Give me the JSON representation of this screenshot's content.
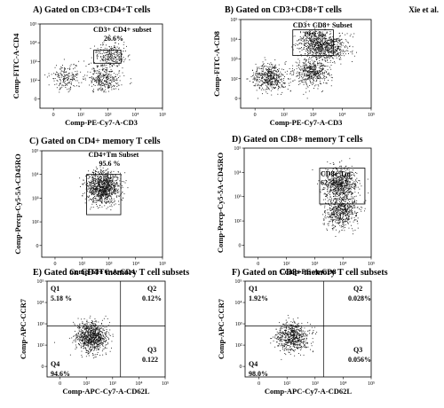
{
  "author": "Xie et al.",
  "chart_data": [
    {
      "type": "scatter",
      "panel": "A",
      "title": "A) Gated on CD3+CD4+T cells",
      "xlabel": "Comp-PE-Cy7-A-CD3",
      "ylabel": "Comp-FITC-A-CD4",
      "axis_scale": "log",
      "xlim": [
        -10,
        100000
      ],
      "ylim": [
        -10,
        100000
      ],
      "x_ticks": [
        "0",
        "10²",
        "10³",
        "10⁴",
        "10⁵"
      ],
      "y_ticks": [
        "0",
        "10²",
        "10³",
        "10⁴",
        "10⁵"
      ],
      "gate": {
        "type": "rectangle",
        "label": "CD3+ CD4+ subset",
        "percent": "26.6%",
        "x_range": [
          300,
          3000
        ],
        "y_range": [
          800,
          4000
        ]
      },
      "populations": [
        {
          "name": "",
          "center": [
            30,
            150
          ],
          "count": 200
        },
        {
          "name": "",
          "center": [
            1200,
            2200
          ],
          "count": 260
        },
        {
          "name": "",
          "center": [
            700,
            120
          ],
          "count": 320
        }
      ]
    },
    {
      "type": "scatter",
      "panel": "B",
      "title": "B) Gated on CD3+CD8+T cells",
      "xlabel": "Comp-PE-Cy7-A-CD3",
      "ylabel": "Comp-FITC-A-CD8",
      "axis_scale": "log",
      "xlim": [
        -10,
        100000
      ],
      "ylim": [
        -10,
        100000
      ],
      "x_ticks": [
        "0",
        "10²",
        "10³",
        "10⁴",
        "10⁵"
      ],
      "y_ticks": [
        "0",
        "10²",
        "10³",
        "10⁴",
        "10⁵"
      ],
      "gate": {
        "type": "rectangle",
        "label": "CD3+ CD8+ Subset",
        "percent": "19.9 %",
        "x_range": [
          200,
          5000
        ],
        "y_range": [
          1500,
          30000
        ]
      },
      "populations": [
        {
          "name": "",
          "center": [
            30,
            120
          ],
          "count": 520
        },
        {
          "name": "",
          "center": [
            1200,
            6000
          ],
          "count": 520
        },
        {
          "name": "",
          "center": [
            900,
            200
          ],
          "count": 480
        },
        {
          "name": "",
          "center": [
            4000,
            4000
          ],
          "count": 380
        }
      ]
    },
    {
      "type": "scatter",
      "panel": "C",
      "title": "C) Gated on CD4+ memory T cells",
      "xlabel": "Comp-FITC-A-CD4",
      "ylabel": "Comp-Percp-Cy5-5A-CD45RO",
      "axis_scale": "log",
      "xlim": [
        -10,
        100000
      ],
      "ylim": [
        -10,
        100000
      ],
      "x_ticks": [
        "0",
        "10²",
        "10³",
        "10⁴",
        "10⁵"
      ],
      "y_ticks": [
        "0",
        "10²",
        "10³",
        "10⁴",
        "10⁵"
      ],
      "gate": {
        "type": "rectangle",
        "label": "CD4+Tm Subset",
        "percent": "95.6 %",
        "x_range": [
          150,
          2800
        ],
        "y_range": [
          200,
          10000
        ]
      },
      "populations": [
        {
          "name": "",
          "center": [
            600,
            3000
          ],
          "count": 1100
        }
      ]
    },
    {
      "type": "scatter",
      "panel": "D",
      "title": "D) Gated on CD8+ memory T cells",
      "xlabel": "Comp-PE-A-CD8",
      "ylabel": "Comp-Percp-Cy5-5A-CD45RO",
      "axis_scale": "log",
      "xlim": [
        -10,
        100000
      ],
      "ylim": [
        -10,
        100000
      ],
      "x_ticks": [
        "0",
        "10²",
        "10³",
        "10⁴",
        "10⁵"
      ],
      "y_ticks": [
        "0",
        "10²",
        "10³",
        "10⁴",
        "10⁵"
      ],
      "gate": {
        "type": "rectangle",
        "label": "CD8+ Tm",
        "percent": "62. 2%",
        "x_range": [
          1500,
          60000
        ],
        "y_range": [
          500,
          15000
        ]
      },
      "populations": [
        {
          "name": "",
          "center": [
            8000,
            3500
          ],
          "count": 700
        },
        {
          "name": "",
          "center": [
            9000,
            250
          ],
          "count": 600
        }
      ]
    },
    {
      "type": "scatter",
      "panel": "E",
      "title": "E) Gated on CD4+ memory T cell subsets",
      "xlabel": "Comp-APC-Cy7-A-CD62L",
      "ylabel": "Comp-APC-CCR7",
      "axis_scale": "log",
      "xlim": [
        -10,
        100000
      ],
      "ylim": [
        -10,
        100000
      ],
      "x_ticks": [
        "0",
        "10²",
        "10³",
        "10⁴",
        "10⁵"
      ],
      "y_ticks": [
        "0",
        "10²",
        "10³",
        "10⁴",
        "10⁵"
      ],
      "quadrant_split": {
        "x": 2000,
        "y": 800
      },
      "quadrants": [
        {
          "name": "Q1",
          "percent": "5.18 %"
        },
        {
          "name": "Q2",
          "percent": "0.12%"
        },
        {
          "name": "Q3",
          "percent": "0.122"
        },
        {
          "name": "Q4",
          "percent": "94.6%"
        }
      ],
      "populations": [
        {
          "name": "",
          "center": [
            150,
            250
          ],
          "count": 900
        }
      ]
    },
    {
      "type": "scatter",
      "panel": "F",
      "title": "F) Gated on CD8+ memory T cell subsets",
      "xlabel": "Comp-APC-Cy7-A-CD62L",
      "ylabel": "Comp-APC-CCR7",
      "axis_scale": "log",
      "xlim": [
        -10,
        100000
      ],
      "ylim": [
        -10,
        100000
      ],
      "x_ticks": [
        "0",
        "10²",
        "10³",
        "10⁴",
        "10⁵"
      ],
      "y_ticks": [
        "0",
        "10²",
        "10³",
        "10⁴",
        "10⁵"
      ],
      "quadrant_split": {
        "x": 2000,
        "y": 800
      },
      "quadrants": [
        {
          "name": "Q1",
          "percent": "1.92%"
        },
        {
          "name": "Q2",
          "percent": "0.028%"
        },
        {
          "name": "Q3",
          "percent": "0.056%"
        },
        {
          "name": "Q4",
          "percent": "98.0%"
        }
      ],
      "populations": [
        {
          "name": "",
          "center": [
            150,
            250
          ],
          "count": 650
        }
      ]
    }
  ]
}
